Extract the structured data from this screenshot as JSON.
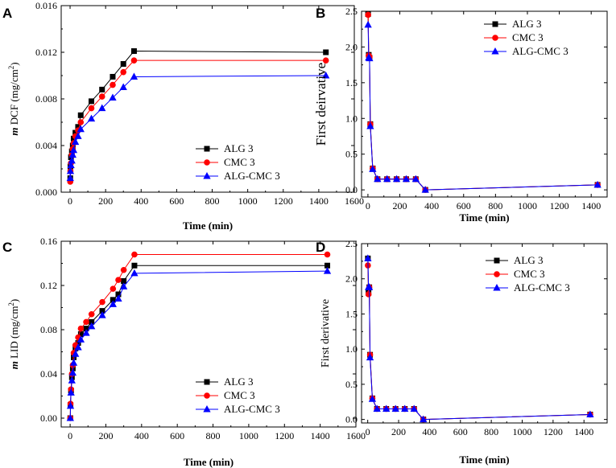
{
  "figure": {
    "colors": {
      "alg": "#000000",
      "cmc": "#ff0000",
      "mix": "#0000ff"
    }
  },
  "chart_data": [
    {
      "panel": "A",
      "type": "line",
      "xlabel": "Time (min)",
      "ylabel_parts": {
        "italic": "m",
        "main": " DCF (mg/cm",
        "sup": "2",
        "close": ")"
      },
      "xlim": [
        -50,
        1600
      ],
      "ylim": [
        0,
        0.016
      ],
      "xticks": [
        0,
        200,
        400,
        600,
        800,
        1000,
        1200,
        1400,
        1600
      ],
      "yticks": [
        0.0,
        0.004,
        0.008,
        0.012,
        0.016
      ],
      "ytick_labels": [
        "0.000",
        "0.004",
        "0.008",
        "0.012",
        "0.016"
      ],
      "legend_position": "bottom-right",
      "x": [
        1,
        2,
        5,
        10,
        15,
        20,
        30,
        45,
        60,
        120,
        180,
        240,
        300,
        360,
        1440
      ],
      "series": [
        {
          "name": "ALG 3",
          "color": "#000000",
          "marker": "square",
          "values": [
            0.0012,
            0.0022,
            0.003,
            0.0035,
            0.004,
            0.0046,
            0.0051,
            0.0056,
            0.0066,
            0.0078,
            0.0088,
            0.0099,
            0.011,
            0.0121,
            0.012
          ]
        },
        {
          "name": "CMC 3",
          "color": "#ff0000",
          "marker": "circle",
          "values": [
            0.0009,
            0.0018,
            0.0025,
            0.0032,
            0.0037,
            0.0042,
            0.0048,
            0.0053,
            0.006,
            0.0072,
            0.0082,
            0.0092,
            0.0103,
            0.0113,
            0.0113
          ]
        },
        {
          "name": "ALG-CMC 3",
          "color": "#0000ff",
          "marker": "triangle",
          "values": [
            0.0012,
            0.0018,
            0.0023,
            0.0027,
            0.0032,
            0.0036,
            0.0043,
            0.0048,
            0.0054,
            0.0063,
            0.0072,
            0.0081,
            0.009,
            0.0099,
            0.01
          ]
        }
      ]
    },
    {
      "panel": "B",
      "type": "line",
      "xlabel": "Time (min)",
      "ylabel": "First deirvative",
      "xlim": [
        -40,
        1500
      ],
      "ylim": [
        -0.1,
        2.5
      ],
      "xticks": [
        0,
        200,
        400,
        600,
        800,
        1000,
        1200,
        1400
      ],
      "yticks": [
        0.0,
        0.5,
        1.0,
        1.5,
        2.0,
        2.5
      ],
      "ytick_labels": [
        "0.0",
        "0.5",
        "1.0",
        "1.5",
        "2.0",
        "2.5"
      ],
      "legend_position": "top-right",
      "x": [
        1,
        5,
        10,
        15,
        30,
        60,
        120,
        180,
        240,
        300,
        360,
        1440
      ],
      "series": [
        {
          "name": "ALG 3",
          "color": "#000000",
          "marker": "square",
          "values": [
            2.46,
            1.89,
            1.85,
            0.92,
            0.3,
            0.15,
            0.15,
            0.15,
            0.15,
            0.15,
            0.0,
            0.07
          ]
        },
        {
          "name": "CMC 3",
          "color": "#ff0000",
          "marker": "circle",
          "values": [
            2.45,
            1.88,
            1.86,
            0.92,
            0.3,
            0.15,
            0.15,
            0.15,
            0.15,
            0.15,
            0.0,
            0.07
          ]
        },
        {
          "name": "ALG-CMC 3",
          "color": "#0000ff",
          "marker": "triangle",
          "values": [
            2.31,
            1.85,
            1.84,
            0.89,
            0.29,
            0.15,
            0.15,
            0.15,
            0.15,
            0.15,
            0.0,
            0.07
          ]
        }
      ]
    },
    {
      "panel": "C",
      "type": "line",
      "xlabel": "Time (min)",
      "ylabel_parts": {
        "italic": "m",
        "main": " LID (mg/cm",
        "sup": "2",
        "close": ")"
      },
      "xlim": [
        -50,
        1600
      ],
      "ylim": [
        -0.008,
        0.16
      ],
      "xticks": [
        0,
        200,
        400,
        600,
        800,
        1000,
        1200,
        1400,
        1600
      ],
      "yticks": [
        0.0,
        0.04,
        0.08,
        0.12,
        0.16
      ],
      "ytick_labels": [
        "0.00",
        "0.04",
        "0.08",
        "0.12",
        "0.16"
      ],
      "legend_position": "bottom-right",
      "x": [
        1,
        2,
        5,
        10,
        15,
        20,
        30,
        45,
        60,
        90,
        120,
        180,
        240,
        270,
        300,
        360,
        1440
      ],
      "series": [
        {
          "name": "ALG 3",
          "color": "#000000",
          "marker": "square",
          "values": [
            0.0,
            0.012,
            0.025,
            0.037,
            0.045,
            0.055,
            0.063,
            0.068,
            0.076,
            0.081,
            0.087,
            0.097,
            0.107,
            0.112,
            0.124,
            0.138,
            0.138
          ]
        },
        {
          "name": "CMC 3",
          "color": "#ff0000",
          "marker": "circle",
          "values": [
            0.0,
            0.013,
            0.026,
            0.04,
            0.048,
            0.059,
            0.066,
            0.073,
            0.081,
            0.087,
            0.094,
            0.105,
            0.117,
            0.125,
            0.134,
            0.148,
            0.148
          ]
        },
        {
          "name": "ALG-CMC 3",
          "color": "#0000ff",
          "marker": "triangle",
          "values": [
            0.0,
            0.011,
            0.023,
            0.034,
            0.041,
            0.05,
            0.058,
            0.064,
            0.071,
            0.077,
            0.083,
            0.093,
            0.103,
            0.108,
            0.119,
            0.131,
            0.133
          ]
        }
      ]
    },
    {
      "panel": "D",
      "type": "line",
      "xlabel": "Time (min)",
      "ylabel": "First derivative",
      "xlim": [
        -40,
        1550
      ],
      "ylim": [
        -0.05,
        2.5
      ],
      "xticks": [
        0,
        200,
        400,
        600,
        800,
        1000,
        1200,
        1400
      ],
      "yticks": [
        0.0,
        0.5,
        1.0,
        1.5,
        2.0,
        2.5
      ],
      "ytick_labels": [
        "0.0",
        "0.5",
        "1.0",
        "1.5",
        "2.0",
        "2.5"
      ],
      "legend_position": "top-right",
      "x": [
        1,
        5,
        10,
        15,
        30,
        60,
        120,
        180,
        240,
        300,
        360,
        1440
      ],
      "series": [
        {
          "name": "ALG 3",
          "color": "#000000",
          "marker": "square",
          "values": [
            2.29,
            1.8,
            1.88,
            0.92,
            0.3,
            0.15,
            0.15,
            0.15,
            0.15,
            0.15,
            0.0,
            0.07
          ]
        },
        {
          "name": "CMC 3",
          "color": "#ff0000",
          "marker": "circle",
          "values": [
            2.19,
            1.78,
            1.88,
            0.92,
            0.3,
            0.15,
            0.15,
            0.15,
            0.15,
            0.15,
            0.0,
            0.07
          ]
        },
        {
          "name": "ALG-CMC 3",
          "color": "#0000ff",
          "marker": "triangle",
          "values": [
            2.29,
            1.88,
            1.88,
            0.88,
            0.29,
            0.15,
            0.15,
            0.15,
            0.15,
            0.15,
            0.0,
            0.07
          ]
        }
      ]
    }
  ]
}
